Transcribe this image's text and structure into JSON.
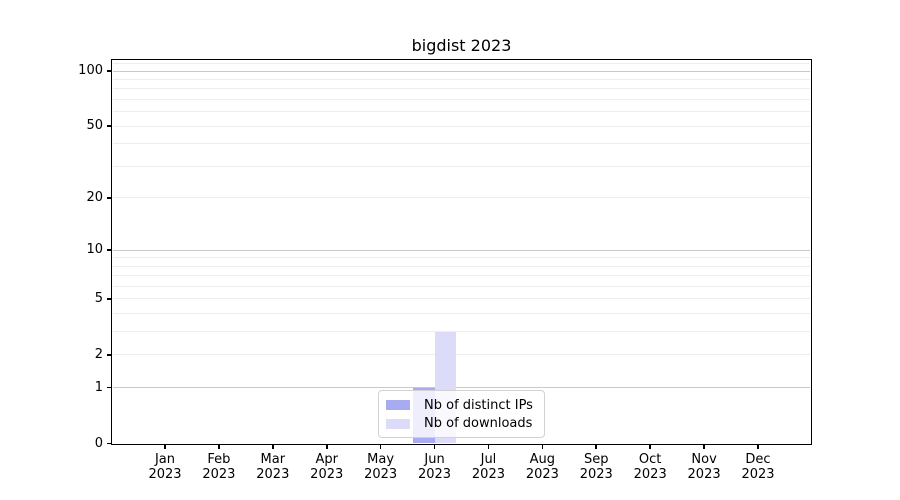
{
  "figure": {
    "title": "bigdist 2023"
  },
  "chart_data": {
    "type": "bar",
    "title": "bigdist 2023",
    "categories": [
      "Jan",
      "Feb",
      "Mar",
      "Apr",
      "May",
      "Jun",
      "Jul",
      "Aug",
      "Sep",
      "Oct",
      "Nov",
      "Dec"
    ],
    "year_label": "2023",
    "series": [
      {
        "name": "Nb of distinct IPs",
        "color": "#a9abf0",
        "values": [
          0,
          0,
          0,
          0,
          0,
          1,
          0,
          0,
          0,
          0,
          0,
          0
        ]
      },
      {
        "name": "Nb of downloads",
        "color": "#dcdcf8",
        "values": [
          0,
          0,
          0,
          0,
          0,
          3,
          0,
          0,
          0,
          0,
          0,
          0
        ]
      }
    ],
    "xlabel": "",
    "ylabel": "",
    "y_ticks": [
      0,
      1,
      2,
      5,
      10,
      20,
      50,
      100
    ],
    "y_scale": "log10(1+v)",
    "ylim": [
      0,
      115
    ],
    "grid": true,
    "legend_position": "lower center"
  },
  "colors": {
    "bar_distinct_ips": "#a9abf0",
    "bar_downloads": "#dcdcf8",
    "grid_major": "#c9c9c9",
    "grid_minor": "#ededed",
    "axis": "#000000",
    "background": "#ffffff",
    "text": "#000000"
  }
}
